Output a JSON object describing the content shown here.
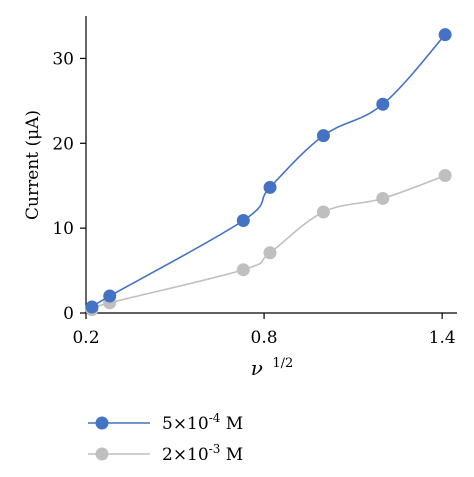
{
  "chart_data": {
    "type": "line",
    "title": "",
    "xlabel": "ν 1/2",
    "xlabel_main": "ν",
    "xlabel_sup": "1/2",
    "ylabel": "Current (μA)",
    "xlim": [
      0.2,
      1.45
    ],
    "ylim": [
      0,
      35
    ],
    "xticks": [
      0.2,
      0.8,
      1.4
    ],
    "xtick_labels": [
      "0.2",
      "0.8",
      "1.4"
    ],
    "yticks": [
      0,
      10,
      20,
      30
    ],
    "ytick_labels": [
      "0",
      "10",
      "20",
      "30"
    ],
    "grid": false,
    "legend_position": "bottom-left",
    "series": [
      {
        "name": "5×10-4 M",
        "name_base": "5×10",
        "name_exp": "-4",
        "name_unit": " M",
        "color": "#4472c4",
        "x": [
          0.22,
          0.28,
          0.73,
          0.82,
          1.0,
          1.2,
          1.41
        ],
        "y": [
          0.7,
          2.0,
          10.9,
          14.8,
          20.9,
          24.6,
          32.8
        ]
      },
      {
        "name": "2×10-3 M",
        "name_base": "2×10",
        "name_exp": "-3",
        "name_unit": " M",
        "color": "#bfbfbf",
        "x": [
          0.22,
          0.28,
          0.73,
          0.82,
          1.0,
          1.2,
          1.41
        ],
        "y": [
          0.4,
          1.2,
          5.1,
          7.1,
          11.9,
          13.5,
          16.2
        ]
      }
    ]
  }
}
